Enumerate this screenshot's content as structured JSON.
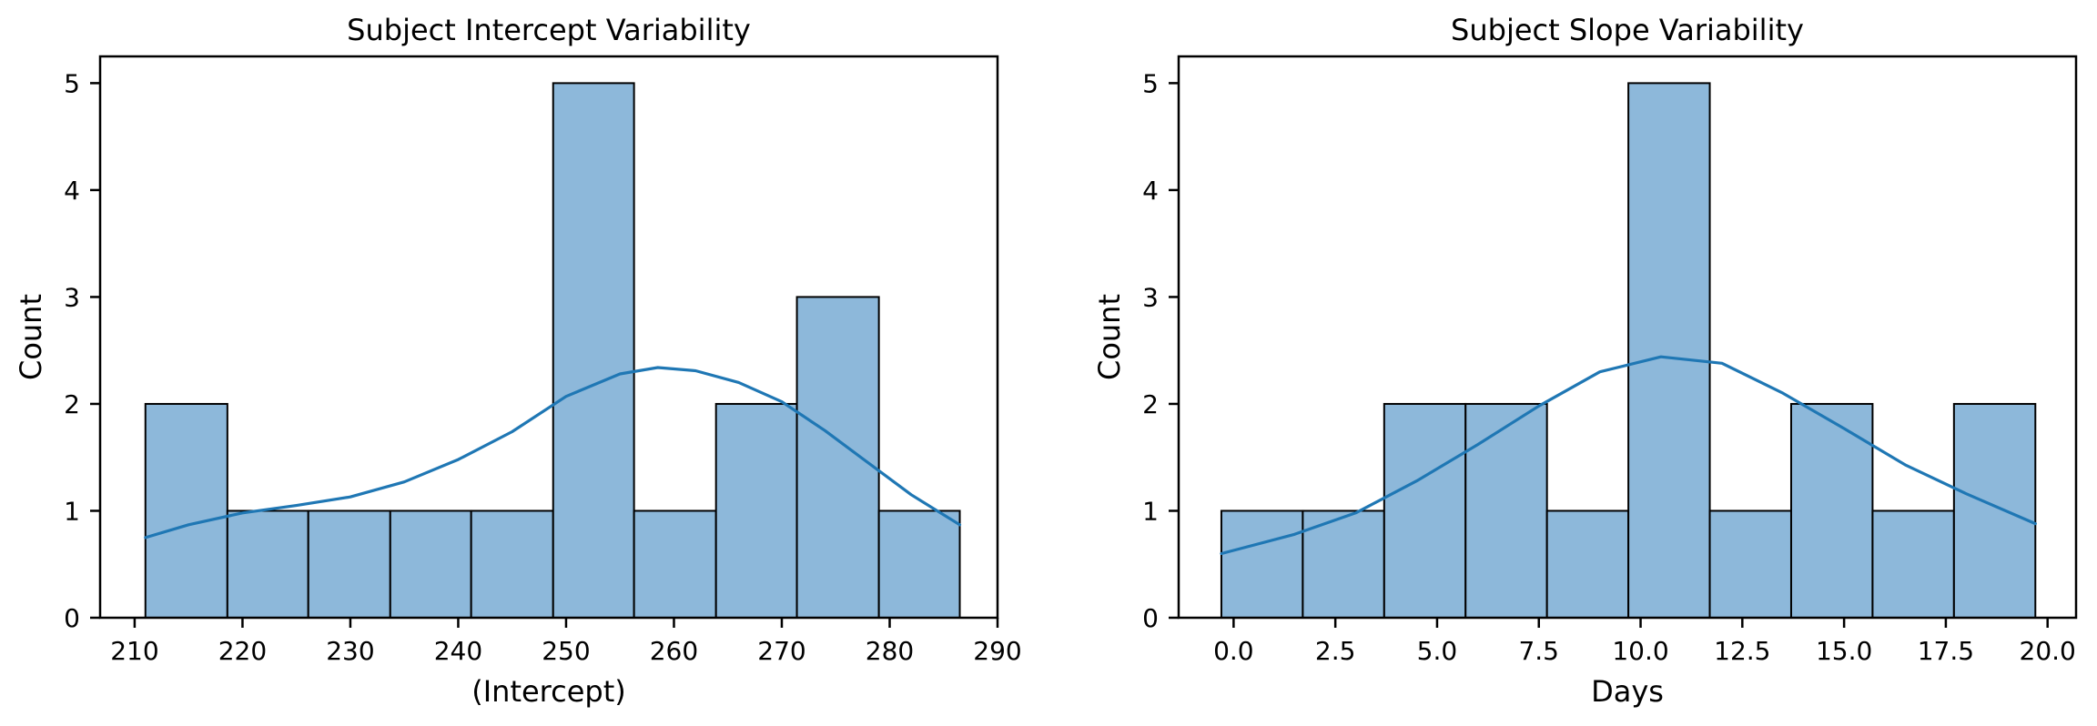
{
  "colors": {
    "bar_fill": "#8db8da",
    "bar_edge": "#000000",
    "kde_line": "#1f77b4",
    "axis": "#000000",
    "background": "#ffffff"
  },
  "chart_data": [
    {
      "type": "bar",
      "subtype": "histogram_with_kde",
      "title": "Subject Intercept Variability",
      "xlabel": "(Intercept)",
      "ylabel": "Count",
      "xlim": [
        206.8,
        290
      ],
      "ylim": [
        0,
        5.25
      ],
      "xticks": [
        210,
        220,
        230,
        240,
        250,
        260,
        270,
        280,
        290
      ],
      "xtick_labels": [
        "210",
        "220",
        "230",
        "240",
        "250",
        "260",
        "270",
        "280",
        "290"
      ],
      "yticks": [
        0,
        1,
        2,
        3,
        4,
        5
      ],
      "ytick_labels": [
        "0",
        "1",
        "2",
        "3",
        "4",
        "5"
      ],
      "grid": false,
      "legend": false,
      "bin_edges": [
        211.0,
        218.6,
        226.1,
        233.7,
        241.2,
        248.8,
        256.3,
        263.9,
        271.4,
        279.0,
        286.5
      ],
      "values": [
        2,
        1,
        1,
        1,
        1,
        5,
        1,
        2,
        3,
        1
      ],
      "kde": {
        "x": [
          211.0,
          215,
          220,
          225,
          230,
          235,
          240,
          245,
          250,
          255,
          258.5,
          262,
          266,
          270,
          274,
          278,
          282,
          286.5
        ],
        "y": [
          0.75,
          0.87,
          0.98,
          1.05,
          1.13,
          1.27,
          1.48,
          1.74,
          2.07,
          2.28,
          2.34,
          2.31,
          2.2,
          2.02,
          1.75,
          1.45,
          1.15,
          0.87
        ]
      }
    },
    {
      "type": "bar",
      "subtype": "histogram_with_kde",
      "title": "Subject Slope Variability",
      "xlabel": "Days",
      "ylabel": "Count",
      "xlim": [
        -1.35,
        20.7
      ],
      "ylim": [
        0,
        5.25
      ],
      "xticks": [
        0,
        2.5,
        5,
        7.5,
        10,
        12.5,
        15,
        17.5,
        20
      ],
      "xtick_labels": [
        "0.0",
        "2.5",
        "5.0",
        "7.5",
        "10.0",
        "12.5",
        "15.0",
        "17.5",
        "20.0"
      ],
      "yticks": [
        0,
        1,
        2,
        3,
        4,
        5
      ],
      "ytick_labels": [
        "0",
        "1",
        "2",
        "3",
        "4",
        "5"
      ],
      "grid": false,
      "legend": false,
      "bin_edges": [
        -0.3,
        1.7,
        3.7,
        5.7,
        7.7,
        9.7,
        11.7,
        13.7,
        15.7,
        17.7,
        19.7
      ],
      "values": [
        1,
        1,
        2,
        2,
        1,
        5,
        1,
        2,
        1,
        2
      ],
      "kde": {
        "x": [
          -0.3,
          1.5,
          3.0,
          4.5,
          6.0,
          7.5,
          9.0,
          10.5,
          12.0,
          13.5,
          15.0,
          16.5,
          18.0,
          19.7
        ],
        "y": [
          0.6,
          0.78,
          0.98,
          1.28,
          1.62,
          1.98,
          2.3,
          2.44,
          2.38,
          2.1,
          1.77,
          1.43,
          1.16,
          0.88
        ]
      }
    }
  ]
}
